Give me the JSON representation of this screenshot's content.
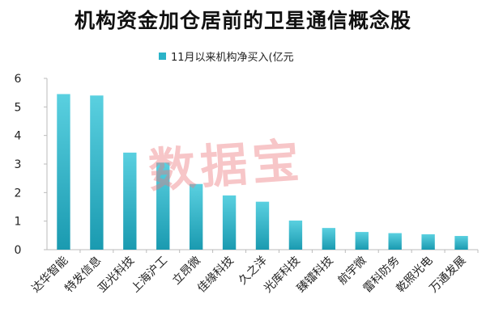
{
  "watermark": "数据宝",
  "colors": {
    "bar_top": "#5ad0e0",
    "bar_bottom": "#1a9ab0",
    "axis": "#bbbbbb",
    "legend": "#2ab3c8"
  },
  "chart_data": {
    "type": "bar",
    "title": "机构资金加仓居前的卫星通信概念股",
    "categories": [
      "达华智能",
      "特发信息",
      "亚光科技",
      "上海沪工",
      "立昂微",
      "佳缘科技",
      "久之洋",
      "光库科技",
      "臻镭科技",
      "航宇微",
      "雷科防务",
      "乾照光电",
      "万通发展"
    ],
    "series": [
      {
        "name": "11月以来机构净买入(亿元",
        "values": [
          5.45,
          5.4,
          3.4,
          3.05,
          2.3,
          1.9,
          1.68,
          1.02,
          0.76,
          0.62,
          0.58,
          0.54,
          0.48
        ]
      }
    ],
    "yticks": [
      0,
      1,
      2,
      3,
      4,
      5,
      6
    ],
    "ylim": [
      0,
      6
    ],
    "grid": false,
    "legend_position": "top"
  }
}
